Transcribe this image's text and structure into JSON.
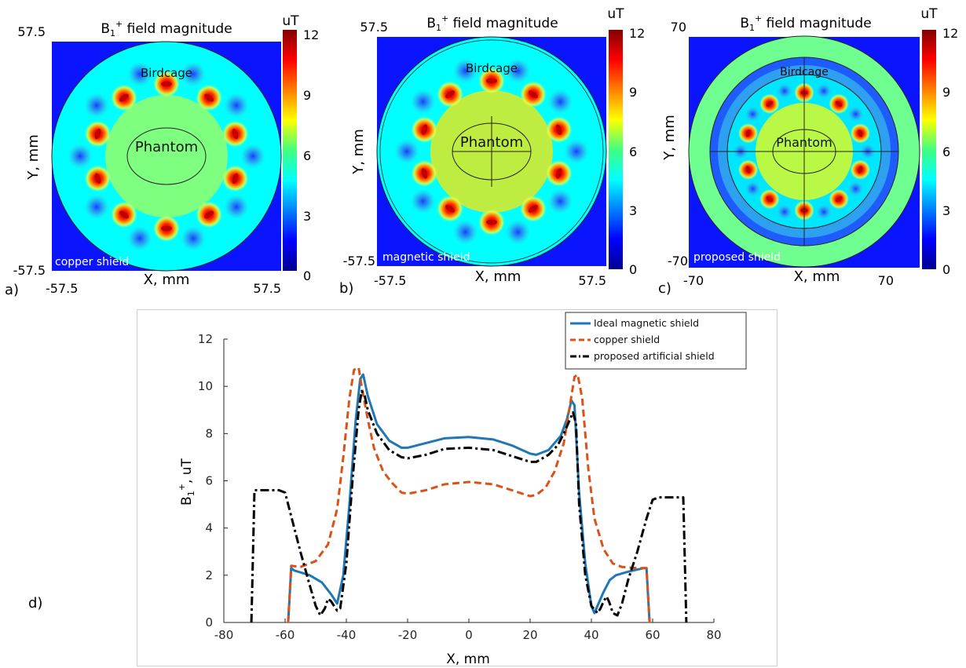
{
  "chart_data": [
    {
      "type": "heatmap",
      "panel_label": "a)",
      "title_main": "B",
      "title_sub": "1",
      "title_sup": "+",
      "title_rest": " field magnitude",
      "xlabel": "X, mm",
      "ylabel": "Y, mm",
      "xlim": [
        -57.5,
        57.5
      ],
      "ylim": [
        -57.5,
        57.5
      ],
      "x_tick_labels": [
        "-57.5",
        "57.5"
      ],
      "y_tick_labels": [
        "57.5",
        "-57.5"
      ],
      "colorbar": {
        "unit": "uT",
        "range": [
          0,
          12
        ],
        "tick_labels": [
          "12",
          "9",
          "6",
          "3",
          "0"
        ]
      },
      "labels": {
        "coil": "Birdcage",
        "object": "Phantom",
        "shield": "copper shield"
      },
      "rungs": 10,
      "background_level_uT": 4.5,
      "phantom_level_uT": 6.5
    },
    {
      "type": "heatmap",
      "panel_label": "b)",
      "title_main": "B",
      "title_sub": "1",
      "title_sup": "+",
      "title_rest": " field magnitude",
      "xlabel": "X, mm",
      "ylabel": "Y, mm",
      "xlim": [
        -57.5,
        57.5
      ],
      "ylim": [
        -57.5,
        57.5
      ],
      "x_tick_labels": [
        "-57.5",
        "57.5"
      ],
      "y_tick_labels": [
        "57.5",
        "-57.5"
      ],
      "colorbar": {
        "unit": "uT",
        "range": [
          0,
          12
        ],
        "tick_labels": [
          "12",
          "9",
          "6",
          "3",
          "0"
        ]
      },
      "labels": {
        "coil": "Birdcage",
        "object": "Phantom",
        "shield": "magnetic shield"
      },
      "rungs": 10,
      "background_level_uT": 4.5,
      "phantom_level_uT": 7.8
    },
    {
      "type": "heatmap",
      "panel_label": "c)",
      "title_main": "B",
      "title_sub": "1",
      "title_sup": "+",
      "title_rest": " field magnitude",
      "xlabel": "X, mm",
      "ylabel": "Y, mm",
      "xlim": [
        -70,
        70
      ],
      "ylim": [
        -70,
        70
      ],
      "x_tick_labels": [
        "-70",
        "70"
      ],
      "y_tick_labels": [
        "70",
        "-70"
      ],
      "colorbar": {
        "unit": "uT",
        "range": [
          0,
          12
        ],
        "tick_labels": [
          "12",
          "9",
          "6",
          "3",
          "0"
        ]
      },
      "labels": {
        "coil": "Birdcage",
        "object": "Phantom",
        "shield": "proposed shield"
      },
      "rungs": 10,
      "background_level_uT": 5.8,
      "phantom_level_uT": 7.4
    },
    {
      "type": "line",
      "panel_label": "d)",
      "xlabel": "X, mm",
      "ylabel_main": "B",
      "ylabel_sub": "1",
      "ylabel_sup": "+",
      "ylabel_rest": ", uT",
      "xlim": [
        -80,
        80
      ],
      "ylim": [
        0,
        12
      ],
      "x_ticks": [
        -80,
        -60,
        -40,
        -20,
        0,
        20,
        40,
        60,
        80
      ],
      "y_ticks": [
        0,
        2,
        4,
        6,
        8,
        10,
        12
      ],
      "legend_position": "top-right",
      "series": [
        {
          "name": "Ideal magnetic shield",
          "color": "#1f77b4",
          "dash": "solid",
          "x": [
            -59,
            -58,
            -57,
            -52,
            -48,
            -45,
            -43,
            -41,
            -39,
            -37,
            -35.5,
            -34.5,
            -33,
            -30,
            -26,
            -22,
            -20,
            -14,
            -8,
            0,
            8,
            14,
            20,
            22,
            26,
            30,
            32,
            33.5,
            34.5,
            36,
            38,
            40,
            41,
            42,
            44,
            46,
            48,
            52,
            57,
            58,
            59
          ],
          "y": [
            0,
            2.3,
            2.2,
            2.0,
            1.7,
            1.2,
            0.8,
            2.0,
            5.0,
            8.5,
            10.3,
            10.5,
            9.6,
            8.4,
            7.7,
            7.4,
            7.4,
            7.6,
            7.8,
            7.85,
            7.75,
            7.5,
            7.15,
            7.1,
            7.3,
            7.9,
            8.6,
            9.4,
            9.2,
            5.5,
            2.5,
            0.7,
            0.4,
            0.7,
            1.3,
            1.8,
            2.0,
            2.15,
            2.3,
            2.3,
            0
          ]
        },
        {
          "name": "copper shield",
          "color": "#d95319",
          "dash": "dash",
          "x": [
            -59,
            -58,
            -55,
            -50,
            -46,
            -43,
            -41,
            -39,
            -37.5,
            -36,
            -35,
            -33,
            -31,
            -28,
            -25,
            -22,
            -20,
            -14,
            -8,
            0,
            8,
            14,
            20,
            22,
            25,
            28,
            31,
            33,
            34.5,
            35.5,
            37,
            39,
            41,
            44,
            47,
            50,
            55,
            58,
            59
          ],
          "y": [
            0,
            2.4,
            2.35,
            2.6,
            3.3,
            4.8,
            7.0,
            9.5,
            10.7,
            10.8,
            10.0,
            8.6,
            7.4,
            6.4,
            5.9,
            5.5,
            5.45,
            5.6,
            5.85,
            5.95,
            5.85,
            5.6,
            5.35,
            5.4,
            5.7,
            6.4,
            7.6,
            9.2,
            10.4,
            10.5,
            9.5,
            6.5,
            4.4,
            3.1,
            2.5,
            2.35,
            2.3,
            2.3,
            0
          ]
        },
        {
          "name": "proposed artificial shield",
          "color": "#000000",
          "dash": "dashdot",
          "x": [
            -71,
            -70,
            -66,
            -62,
            -60,
            -57,
            -55,
            -52,
            -50,
            -48.5,
            -47,
            -46,
            -45,
            -44,
            -43,
            -42,
            -40,
            -38,
            -36,
            -35,
            -34,
            -33,
            -30,
            -26,
            -22,
            -20,
            -14,
            -8,
            0,
            8,
            14,
            20,
            22,
            26,
            29,
            31,
            33,
            34,
            35,
            36,
            38,
            40,
            42,
            43,
            44,
            45,
            46,
            47,
            48.5,
            50,
            52,
            55,
            58,
            60,
            62,
            66,
            70,
            71
          ],
          "y": [
            0,
            5.6,
            5.6,
            5.6,
            5.5,
            4.0,
            3.0,
            1.6,
            0.7,
            0.3,
            0.6,
            1.0,
            0.9,
            0.7,
            0.5,
            0.6,
            2.5,
            6.0,
            9.0,
            9.8,
            9.6,
            9.0,
            8.0,
            7.3,
            7.0,
            6.95,
            7.1,
            7.35,
            7.4,
            7.3,
            7.05,
            6.8,
            6.8,
            7.1,
            7.5,
            8.0,
            8.6,
            8.9,
            8.4,
            5.0,
            2.0,
            0.7,
            0.4,
            0.6,
            0.9,
            1.1,
            0.8,
            0.4,
            0.3,
            0.8,
            1.8,
            3.0,
            4.4,
            5.2,
            5.3,
            5.3,
            5.3,
            0
          ]
        }
      ]
    }
  ]
}
